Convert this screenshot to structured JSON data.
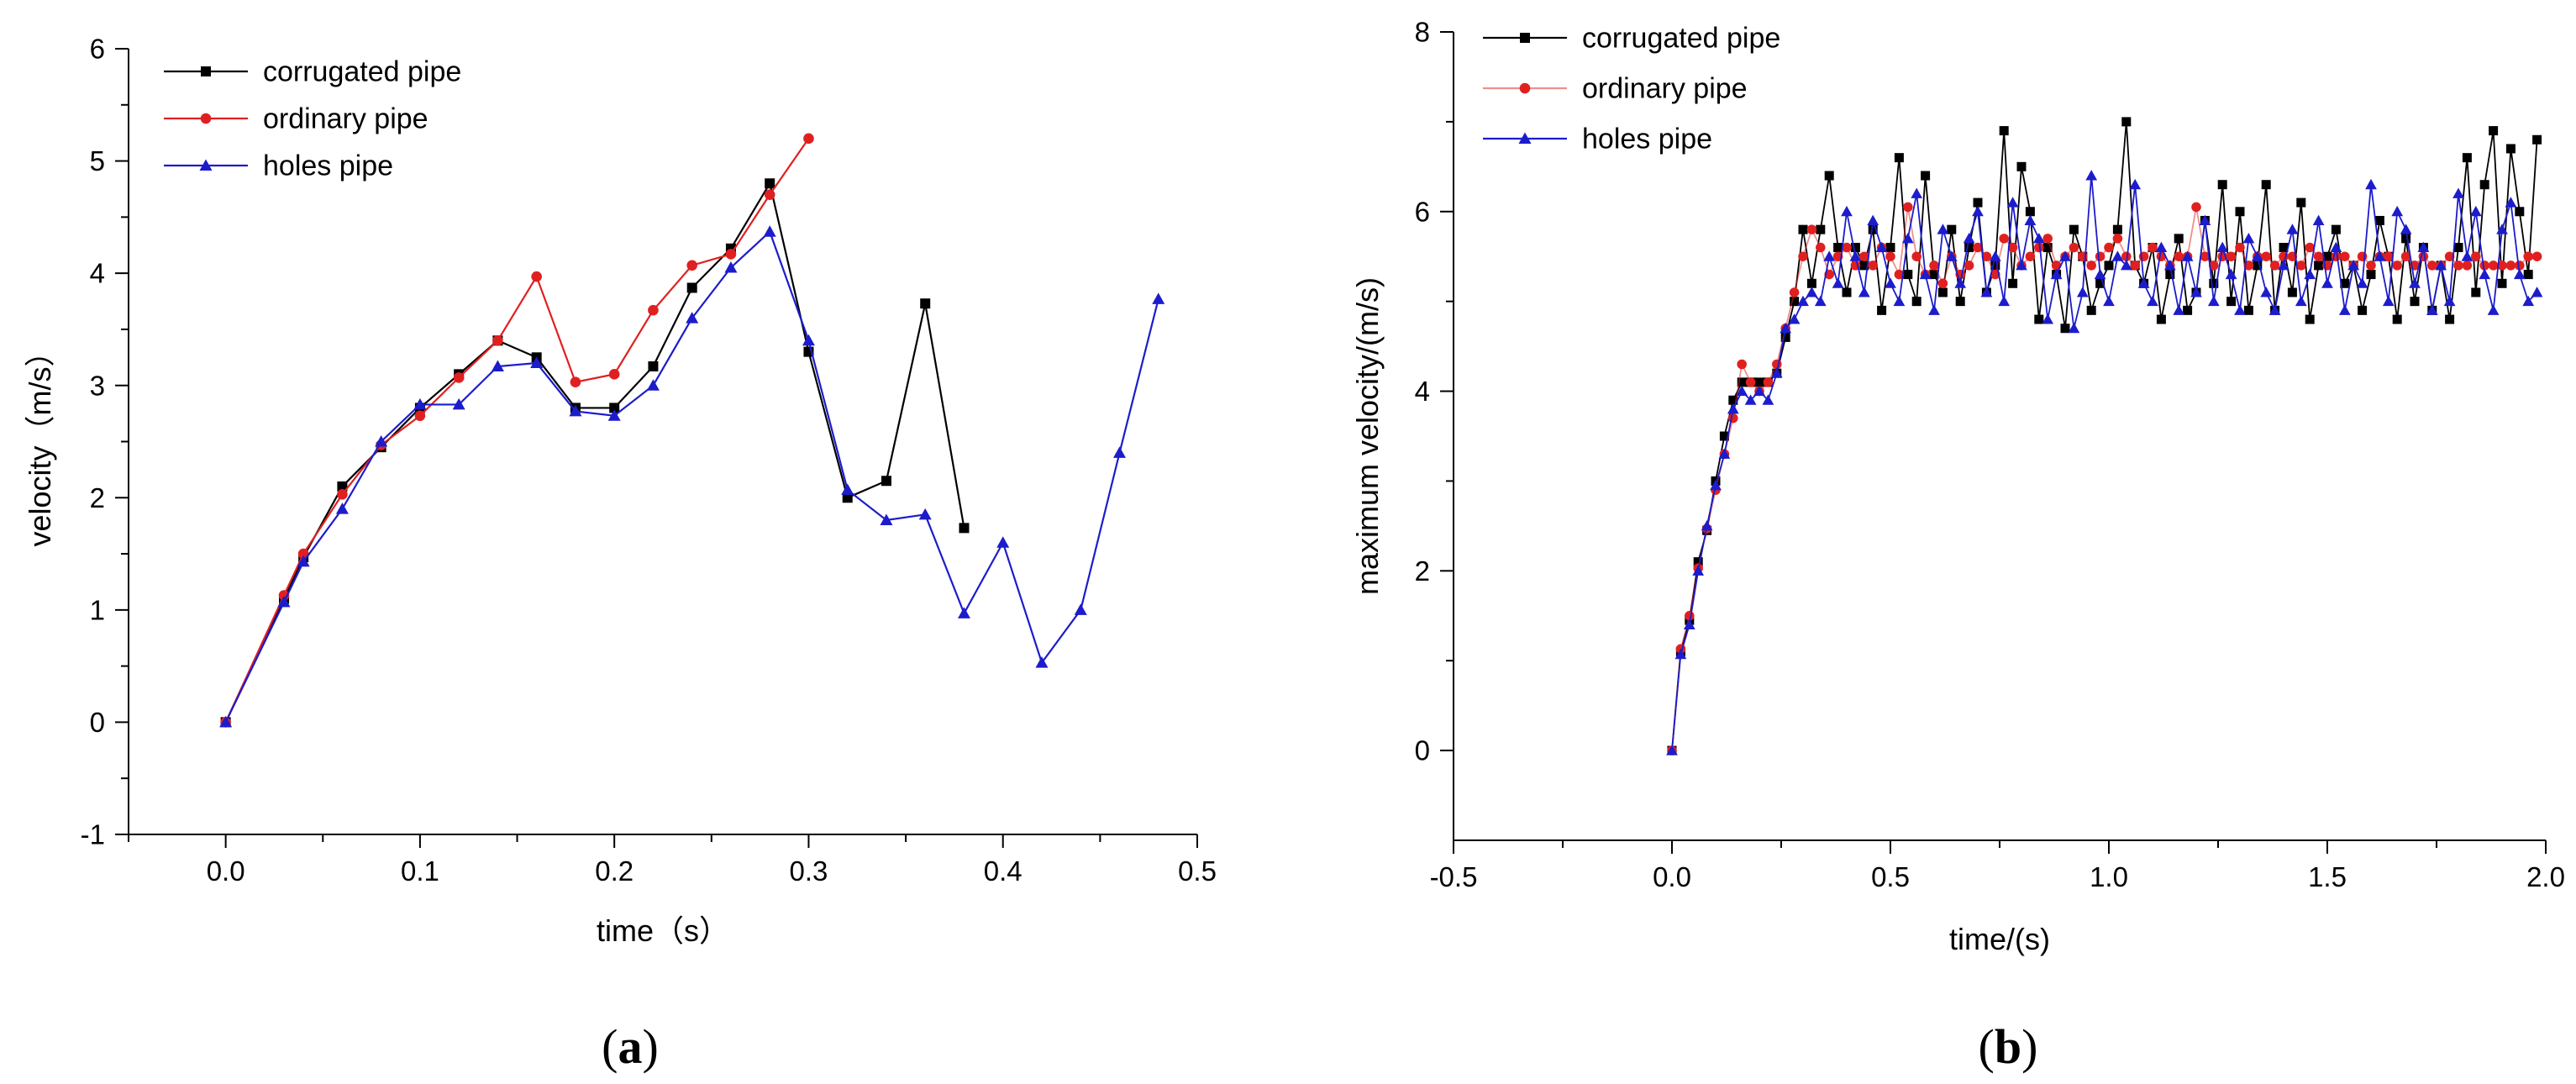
{
  "chart_data": [
    {
      "type": "line",
      "panel_label": "a",
      "title": "",
      "xlabel": "time（s）",
      "ylabel": "velocity（m/s）",
      "xlim": [
        -0.05,
        0.5
      ],
      "ylim": [
        -1,
        6
      ],
      "x_ticks": [
        0.0,
        0.1,
        0.2,
        0.3,
        0.4,
        0.5
      ],
      "x_tick_labels": [
        "0.0",
        "0.1",
        "0.2",
        "0.3",
        "0.4",
        "0.5"
      ],
      "y_ticks": [
        -1,
        0,
        1,
        2,
        3,
        4,
        5,
        6
      ],
      "y_tick_labels": [
        "-1",
        "0",
        "1",
        "2",
        "3",
        "4",
        "5",
        "6"
      ],
      "grid": false,
      "legend_position": "top-left",
      "series": [
        {
          "name": "corrugated pipe",
          "color": "#000000",
          "marker": "square",
          "x": [
            0,
            0.03,
            0.04,
            0.06,
            0.08,
            0.1,
            0.12,
            0.14,
            0.16,
            0.18,
            0.2,
            0.22,
            0.24,
            0.26,
            0.28,
            0.3,
            0.32,
            0.34,
            0.36,
            0.38
          ],
          "y": [
            0,
            1.1,
            1.47,
            2.1,
            2.45,
            2.8,
            3.1,
            3.4,
            3.25,
            2.8,
            2.8,
            3.17,
            3.87,
            4.22,
            4.8,
            3.3,
            2.0,
            2.15,
            3.73,
            1.73
          ]
        },
        {
          "name": "ordinary pipe",
          "color": "#e02020",
          "marker": "circle",
          "x": [
            0,
            0.03,
            0.04,
            0.06,
            0.08,
            0.1,
            0.12,
            0.14,
            0.16,
            0.18,
            0.2,
            0.22,
            0.24,
            0.26,
            0.28,
            0.3
          ],
          "y": [
            0,
            1.13,
            1.5,
            2.03,
            2.47,
            2.73,
            3.07,
            3.4,
            3.97,
            3.03,
            3.1,
            3.67,
            4.07,
            4.17,
            4.7,
            5.2
          ]
        },
        {
          "name": "holes pipe",
          "color": "#1c1ccc",
          "marker": "triangle",
          "x": [
            0,
            0.03,
            0.04,
            0.06,
            0.08,
            0.1,
            0.12,
            0.14,
            0.16,
            0.18,
            0.2,
            0.22,
            0.24,
            0.26,
            0.28,
            0.3,
            0.32,
            0.34,
            0.36,
            0.38,
            0.4,
            0.42,
            0.44,
            0.46,
            0.48
          ],
          "y": [
            0,
            1.07,
            1.43,
            1.9,
            2.5,
            2.83,
            2.83,
            3.17,
            3.2,
            2.77,
            2.73,
            3.0,
            3.6,
            4.05,
            4.37,
            3.4,
            2.07,
            1.8,
            1.85,
            0.97,
            1.6,
            0.53,
            1.0,
            2.4,
            3.77
          ]
        }
      ]
    },
    {
      "type": "line",
      "panel_label": "b",
      "title": "",
      "xlabel": "time/(s)",
      "ylabel": "maximum velocity/(m/s)",
      "xlim": [
        -0.5,
        2.0
      ],
      "ylim": [
        -1,
        8
      ],
      "x_ticks": [
        -0.5,
        0.0,
        0.5,
        1.0,
        1.5,
        2.0
      ],
      "x_tick_labels": [
        "-0.5",
        "0.0",
        "0.5",
        "1.0",
        "1.5",
        "2.0"
      ],
      "y_ticks": [
        0,
        2,
        4,
        6,
        8
      ],
      "y_tick_labels": [
        "0",
        "2",
        "4",
        "6",
        "8"
      ],
      "grid": false,
      "legend_position": "top-left",
      "series": [
        {
          "name": "corrugated pipe",
          "color": "#000000",
          "marker": "square",
          "x": [
            0,
            0.02,
            0.04,
            0.06,
            0.08,
            0.1,
            0.12,
            0.14,
            0.16,
            0.18,
            0.2,
            0.22,
            0.24,
            0.26,
            0.28,
            0.3,
            0.32,
            0.34,
            0.36,
            0.38,
            0.4,
            0.42,
            0.44,
            0.46,
            0.48,
            0.5,
            0.52,
            0.54,
            0.56,
            0.58,
            0.6,
            0.62,
            0.64,
            0.66,
            0.68,
            0.7,
            0.72,
            0.74,
            0.76,
            0.78,
            0.8,
            0.82,
            0.84,
            0.86,
            0.88,
            0.9,
            0.92,
            0.94,
            0.96,
            0.98,
            1.0,
            1.02,
            1.04,
            1.06,
            1.08,
            1.1,
            1.12,
            1.14,
            1.16,
            1.18,
            1.2,
            1.22,
            1.24,
            1.26,
            1.28,
            1.3,
            1.32,
            1.34,
            1.36,
            1.38,
            1.4,
            1.42,
            1.44,
            1.46,
            1.48,
            1.5,
            1.52,
            1.54,
            1.56,
            1.58,
            1.6,
            1.62,
            1.64,
            1.66,
            1.68,
            1.7,
            1.72,
            1.74,
            1.76,
            1.78,
            1.8,
            1.82,
            1.84,
            1.86,
            1.88,
            1.9,
            1.92,
            1.94,
            1.96,
            1.98
          ],
          "y": [
            0,
            1.1,
            1.45,
            2.1,
            2.45,
            3.0,
            3.5,
            3.9,
            4.1,
            4.1,
            4.1,
            4.1,
            4.2,
            4.6,
            5.0,
            5.8,
            5.2,
            5.8,
            6.4,
            5.6,
            5.1,
            5.6,
            5.4,
            5.8,
            4.9,
            5.6,
            6.6,
            5.3,
            5.0,
            6.4,
            5.3,
            5.1,
            5.8,
            5.0,
            5.6,
            6.1,
            5.1,
            5.4,
            6.9,
            5.2,
            6.5,
            6.0,
            4.8,
            5.6,
            5.3,
            4.7,
            5.8,
            5.5,
            4.9,
            5.2,
            5.4,
            5.8,
            7.0,
            5.4,
            5.2,
            5.6,
            4.8,
            5.3,
            5.7,
            4.9,
            5.1,
            5.9,
            5.2,
            6.3,
            5.0,
            6.0,
            4.9,
            5.4,
            6.3,
            4.9,
            5.6,
            5.1,
            6.1,
            4.8,
            5.4,
            5.5,
            5.8,
            5.2,
            5.4,
            4.9,
            5.3,
            5.9,
            5.5,
            4.8,
            5.7,
            5.0,
            5.6,
            4.9,
            5.4,
            4.8,
            5.6,
            6.6,
            5.1,
            6.3,
            6.9,
            5.2,
            6.7,
            6.0,
            5.3,
            6.8
          ]
        },
        {
          "name": "ordinary pipe",
          "color": "#e02020",
          "marker": "circle",
          "x": [
            0,
            0.02,
            0.04,
            0.06,
            0.08,
            0.1,
            0.12,
            0.14,
            0.16,
            0.18,
            0.2,
            0.22,
            0.24,
            0.26,
            0.28,
            0.3,
            0.32,
            0.34,
            0.36,
            0.38,
            0.4,
            0.42,
            0.44,
            0.46,
            0.48,
            0.5,
            0.52,
            0.54,
            0.56,
            0.58,
            0.6,
            0.62,
            0.64,
            0.66,
            0.68,
            0.7,
            0.72,
            0.74,
            0.76,
            0.78,
            0.8,
            0.82,
            0.84,
            0.86,
            0.88,
            0.9,
            0.92,
            0.94,
            0.96,
            0.98,
            1.0,
            1.02,
            1.04,
            1.06,
            1.08,
            1.1,
            1.12,
            1.14,
            1.16,
            1.18,
            1.2,
            1.22,
            1.24,
            1.26,
            1.28,
            1.3,
            1.32,
            1.34,
            1.36,
            1.38,
            1.4,
            1.42,
            1.44,
            1.46,
            1.48,
            1.5,
            1.52,
            1.54,
            1.56,
            1.58,
            1.6,
            1.62,
            1.64,
            1.66,
            1.68,
            1.7,
            1.72,
            1.74,
            1.76,
            1.78,
            1.8,
            1.82,
            1.84,
            1.86,
            1.88,
            1.9,
            1.92,
            1.94,
            1.96,
            1.98
          ],
          "y": [
            0,
            1.13,
            1.5,
            2.03,
            2.47,
            2.9,
            3.3,
            3.7,
            4.3,
            4.1,
            4.0,
            4.1,
            4.3,
            4.7,
            5.1,
            5.5,
            5.8,
            5.6,
            5.3,
            5.5,
            5.6,
            5.4,
            5.5,
            5.4,
            5.6,
            5.5,
            5.3,
            6.05,
            5.5,
            5.3,
            5.4,
            5.2,
            5.5,
            5.3,
            5.4,
            5.6,
            5.5,
            5.3,
            5.7,
            5.6,
            5.4,
            5.5,
            5.6,
            5.7,
            5.4,
            5.5,
            5.6,
            5.5,
            5.4,
            5.5,
            5.6,
            5.7,
            5.5,
            5.4,
            5.5,
            5.6,
            5.5,
            5.4,
            5.5,
            5.5,
            6.05,
            5.5,
            5.4,
            5.5,
            5.5,
            5.6,
            5.4,
            5.5,
            5.5,
            5.4,
            5.5,
            5.5,
            5.4,
            5.6,
            5.5,
            5.4,
            5.5,
            5.5,
            5.4,
            5.5,
            5.4,
            5.5,
            5.5,
            5.4,
            5.5,
            5.4,
            5.5,
            5.4,
            5.4,
            5.5,
            5.4,
            5.4,
            5.5,
            5.4,
            5.4,
            5.4,
            5.4,
            5.4,
            5.5,
            5.5
          ]
        },
        {
          "name": "holes pipe",
          "color": "#1c1ccc",
          "marker": "triangle",
          "x": [
            0,
            0.02,
            0.04,
            0.06,
            0.08,
            0.1,
            0.12,
            0.14,
            0.16,
            0.18,
            0.2,
            0.22,
            0.24,
            0.26,
            0.28,
            0.3,
            0.32,
            0.34,
            0.36,
            0.38,
            0.4,
            0.42,
            0.44,
            0.46,
            0.48,
            0.5,
            0.52,
            0.54,
            0.56,
            0.58,
            0.6,
            0.62,
            0.64,
            0.66,
            0.68,
            0.7,
            0.72,
            0.74,
            0.76,
            0.78,
            0.8,
            0.82,
            0.84,
            0.86,
            0.88,
            0.9,
            0.92,
            0.94,
            0.96,
            0.98,
            1.0,
            1.02,
            1.04,
            1.06,
            1.08,
            1.1,
            1.12,
            1.14,
            1.16,
            1.18,
            1.2,
            1.22,
            1.24,
            1.26,
            1.28,
            1.3,
            1.32,
            1.34,
            1.36,
            1.38,
            1.4,
            1.42,
            1.44,
            1.46,
            1.48,
            1.5,
            1.52,
            1.54,
            1.56,
            1.58,
            1.6,
            1.62,
            1.64,
            1.66,
            1.68,
            1.7,
            1.72,
            1.74,
            1.76,
            1.78,
            1.8,
            1.82,
            1.84,
            1.86,
            1.88,
            1.9,
            1.92,
            1.94,
            1.96,
            1.98
          ],
          "y": [
            0,
            1.07,
            1.4,
            2.0,
            2.5,
            2.95,
            3.3,
            3.8,
            4.0,
            3.9,
            4.0,
            3.9,
            4.2,
            4.7,
            4.8,
            5.0,
            5.1,
            5.0,
            5.5,
            5.2,
            6.0,
            5.5,
            5.1,
            5.9,
            5.6,
            5.2,
            5.0,
            5.7,
            6.2,
            5.3,
            4.9,
            5.8,
            5.5,
            5.2,
            5.7,
            6.0,
            5.1,
            5.5,
            5.0,
            6.1,
            5.4,
            5.9,
            5.7,
            4.8,
            5.3,
            5.5,
            4.7,
            5.1,
            6.4,
            5.3,
            5.0,
            5.5,
            5.4,
            6.3,
            5.2,
            5.0,
            5.6,
            5.4,
            4.9,
            5.5,
            5.1,
            5.9,
            5.0,
            5.6,
            5.3,
            4.9,
            5.7,
            5.5,
            5.1,
            4.9,
            5.4,
            5.8,
            5.0,
            5.3,
            5.9,
            5.2,
            5.6,
            4.9,
            5.4,
            5.2,
            6.3,
            5.5,
            5.0,
            6.0,
            5.8,
            5.2,
            5.6,
            4.9,
            5.4,
            5.0,
            6.2,
            5.5,
            6.0,
            5.3,
            4.9,
            5.8,
            6.1,
            5.3,
            5.0,
            5.1
          ]
        }
      ]
    }
  ]
}
